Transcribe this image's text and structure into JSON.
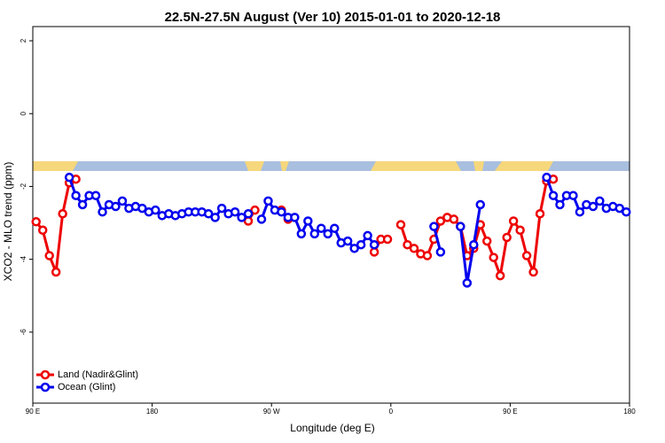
{
  "chart_data": {
    "type": "line",
    "title": "22.5N-27.5N August (Ver 10)   2015-01-01 to 2020-12-18",
    "x_label": "Longitude (deg E)",
    "y_label": "XCO2 - MLO trend (ppm)",
    "x": [
      92.5,
      97.5,
      102.5,
      107.5,
      112.5,
      117.5,
      122.5,
      127.5,
      132.5,
      137.5,
      142.5,
      147.5,
      152.5,
      157.5,
      162.5,
      167.5,
      172.5,
      177.5,
      182.5,
      187.5,
      192.5,
      197.5,
      202.5,
      207.5,
      212.5,
      217.5,
      222.5,
      227.5,
      232.5,
      237.5,
      242.5,
      247.5,
      252.5,
      257.5,
      262.5,
      267.5,
      272.5,
      277.5,
      282.5,
      287.5,
      292.5,
      297.5,
      302.5,
      307.5,
      312.5,
      317.5,
      322.5,
      327.5,
      332.5,
      337.5,
      342.5,
      347.5,
      352.5,
      357.5,
      362.5,
      367.5,
      372.5,
      377.5,
      382.5,
      387.5,
      392.5,
      397.5,
      402.5,
      407.5,
      412.5,
      417.5,
      422.5,
      427.5,
      432.5,
      437.5,
      442.5,
      447.5,
      452.5,
      457.5,
      462.5,
      467.5,
      472.5,
      477.5,
      482.5,
      487.5,
      492.5,
      497.5,
      502.5,
      507.5,
      512.5,
      517.5,
      522.5,
      527.5,
      532.5,
      537.5
    ],
    "series": [
      {
        "name": "Land (Nadir&Glint)",
        "color": "#ee0000",
        "values": [
          -2.97,
          -3.2,
          -3.9,
          -4.35,
          -2.75,
          -1.9,
          -1.8,
          null,
          null,
          null,
          null,
          null,
          null,
          null,
          null,
          null,
          null,
          null,
          null,
          null,
          null,
          null,
          null,
          null,
          null,
          null,
          null,
          null,
          null,
          null,
          null,
          null,
          -2.95,
          -2.65,
          null,
          null,
          null,
          -2.65,
          -2.9,
          null,
          null,
          null,
          null,
          null,
          null,
          null,
          null,
          null,
          null,
          null,
          null,
          -3.8,
          -3.45,
          -3.45,
          null,
          -3.05,
          -3.6,
          -3.7,
          -3.85,
          -3.9,
          -3.45,
          -2.95,
          -2.85,
          -2.9,
          -3.1,
          -3.9,
          -3.7,
          -3.05,
          -3.5,
          -3.95,
          -4.45,
          -3.4,
          -2.95,
          -3.2,
          -3.9,
          -4.35,
          -2.75,
          -1.85,
          -1.8,
          null,
          null,
          null,
          null,
          null,
          null,
          null,
          null,
          null,
          null,
          null
        ]
      },
      {
        "name": "Ocean (Glint)",
        "color": "#0000ee",
        "values": [
          null,
          null,
          null,
          null,
          null,
          -1.75,
          -2.25,
          -2.5,
          -2.25,
          -2.25,
          -2.7,
          -2.5,
          -2.55,
          -2.4,
          -2.6,
          -2.55,
          -2.6,
          -2.7,
          -2.65,
          -2.8,
          -2.75,
          -2.8,
          -2.75,
          -2.7,
          -2.7,
          -2.7,
          -2.75,
          -2.85,
          -2.6,
          -2.75,
          -2.7,
          -2.85,
          -2.75,
          null,
          -2.9,
          -2.4,
          -2.65,
          -2.7,
          -2.85,
          -2.85,
          -3.3,
          -2.95,
          -3.3,
          -3.15,
          -3.3,
          -3.15,
          -3.55,
          -3.5,
          -3.7,
          -3.6,
          -3.35,
          -3.6,
          null,
          null,
          null,
          null,
          null,
          null,
          null,
          null,
          -3.1,
          -3.8,
          null,
          null,
          -3.1,
          -4.65,
          -3.6,
          -2.5,
          null,
          null,
          null,
          null,
          null,
          null,
          null,
          null,
          null,
          -1.75,
          -2.25,
          -2.5,
          -2.25,
          -2.25,
          -2.7,
          -2.5,
          -2.55,
          -2.4,
          -2.6,
          -2.55,
          -2.6,
          -2.7
        ]
      }
    ],
    "xlim": [
      90,
      540
    ],
    "xticks": [
      {
        "value": 90,
        "label": "90 E"
      },
      180,
      {
        "value": 270,
        "label": "90 W"
      },
      {
        "value": 360,
        "label": "0"
      },
      {
        "value": 450,
        "label": "90 E"
      },
      {
        "value": 540,
        "label": "180"
      }
    ],
    "ylim": [
      -7.95,
      2.39
    ],
    "yticks": [
      -6,
      -4,
      -2,
      0,
      2
    ],
    "legend": "bottom-left"
  }
}
